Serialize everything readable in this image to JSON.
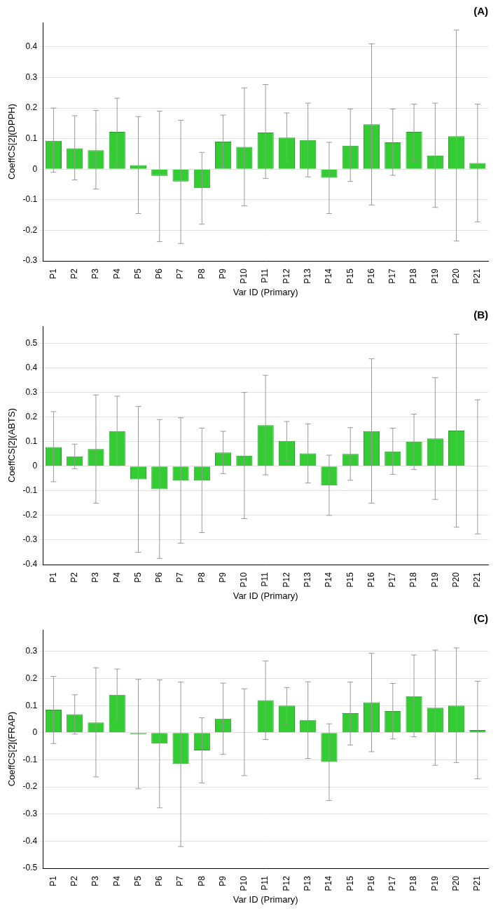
{
  "chart_data": [
    {
      "type": "bar",
      "title": "(A)",
      "y_label": "CoeffCS[2](DPPH)",
      "x_label": "Var ID (Primary)",
      "categories": [
        "P1",
        "P2",
        "P3",
        "P4",
        "P5",
        "P6",
        "P7",
        "P8",
        "P9",
        "P10",
        "P11",
        "P12",
        "P13",
        "P14",
        "P15",
        "P16",
        "P17",
        "P18",
        "P19",
        "P20",
        "P21"
      ],
      "values": [
        0.093,
        0.068,
        0.062,
        0.122,
        0.013,
        -0.022,
        -0.04,
        -0.062,
        0.09,
        0.073,
        0.12,
        0.103,
        0.095,
        -0.028,
        0.077,
        0.147,
        0.088,
        0.122,
        0.045,
        0.108,
        0.02
      ],
      "error_low": [
        -0.01,
        -0.035,
        -0.065,
        0.012,
        -0.145,
        -0.237,
        -0.243,
        -0.18,
        0.005,
        -0.12,
        -0.03,
        0.022,
        -0.025,
        -0.145,
        -0.04,
        -0.117,
        -0.02,
        0.03,
        -0.125,
        -0.235,
        -0.172
      ],
      "error_high": [
        0.2,
        0.175,
        0.192,
        0.232,
        0.172,
        0.19,
        0.16,
        0.055,
        0.177,
        0.266,
        0.277,
        0.184,
        0.216,
        0.088,
        0.197,
        0.41,
        0.197,
        0.213,
        0.216,
        0.455,
        0.213
      ],
      "color": "#33cc33",
      "ylim": [
        -0.3,
        0.48
      ],
      "yticks": [
        -0.3,
        -0.2,
        -0.1,
        0,
        0.1,
        0.2,
        0.3,
        0.4
      ],
      "grid": true
    },
    {
      "type": "bar",
      "title": "(B)",
      "y_label": "CoeffCS[2](ABTS)",
      "x_label": "Var ID (Primary)",
      "categories": [
        "P1",
        "P2",
        "P3",
        "P4",
        "P5",
        "P6",
        "P7",
        "P8",
        "P9",
        "P10",
        "P11",
        "P12",
        "P13",
        "P14",
        "P15",
        "P16",
        "P17",
        "P18",
        "P19",
        "P20",
        "P21"
      ],
      "values": [
        0.078,
        0.04,
        0.07,
        0.143,
        -0.053,
        -0.093,
        -0.058,
        -0.058,
        0.056,
        0.043,
        0.167,
        0.103,
        0.052,
        -0.078,
        0.05,
        0.143,
        0.06,
        0.1,
        0.113,
        0.145,
        -0.002
      ],
      "error_low": [
        -0.063,
        -0.01,
        -0.15,
        0.003,
        -0.35,
        -0.375,
        -0.313,
        -0.27,
        -0.03,
        -0.213,
        -0.035,
        0.023,
        -0.068,
        -0.2,
        -0.057,
        -0.15,
        -0.033,
        -0.013,
        -0.135,
        -0.248,
        -0.275
      ],
      "error_high": [
        0.222,
        0.09,
        0.29,
        0.285,
        0.243,
        0.19,
        0.197,
        0.155,
        0.142,
        0.3,
        0.37,
        0.182,
        0.172,
        0.045,
        0.157,
        0.437,
        0.155,
        0.212,
        0.36,
        0.537,
        0.27
      ],
      "color": "#33cc33",
      "ylim": [
        -0.4,
        0.57
      ],
      "yticks": [
        -0.4,
        -0.3,
        -0.2,
        -0.1,
        0,
        0.1,
        0.2,
        0.3,
        0.4,
        0.5
      ],
      "grid": true
    },
    {
      "type": "bar",
      "title": "(C)",
      "y_label": "CoeffCS[2](FRAP)",
      "x_label": "Var ID (Primary)",
      "categories": [
        "P1",
        "P2",
        "P3",
        "P4",
        "P5",
        "P6",
        "P7",
        "P8",
        "P9",
        "P10",
        "P11",
        "P12",
        "P13",
        "P14",
        "P15",
        "P16",
        "P17",
        "P18",
        "P19",
        "P20",
        "P21"
      ],
      "values": [
        0.085,
        0.068,
        0.038,
        0.14,
        -0.005,
        -0.04,
        -0.115,
        -0.065,
        0.052,
        0.002,
        0.12,
        0.1,
        0.047,
        -0.108,
        0.072,
        0.112,
        0.08,
        0.135,
        0.092,
        0.1,
        0.01
      ],
      "error_low": [
        -0.04,
        -0.005,
        -0.163,
        0.045,
        -0.207,
        -0.277,
        -0.42,
        -0.185,
        -0.08,
        -0.158,
        -0.025,
        0.033,
        -0.095,
        -0.25,
        -0.045,
        -0.07,
        -0.023,
        -0.015,
        -0.12,
        -0.11,
        -0.17
      ],
      "error_high": [
        0.208,
        0.14,
        0.24,
        0.235,
        0.197,
        0.195,
        0.187,
        0.055,
        0.183,
        0.162,
        0.265,
        0.167,
        0.188,
        0.033,
        0.187,
        0.293,
        0.182,
        0.287,
        0.305,
        0.313,
        0.19
      ],
      "color": "#33cc33",
      "ylim": [
        -0.5,
        0.38
      ],
      "yticks": [
        -0.5,
        -0.4,
        -0.3,
        -0.2,
        -0.1,
        0,
        0.1,
        0.2,
        0.3
      ],
      "grid": true
    }
  ]
}
